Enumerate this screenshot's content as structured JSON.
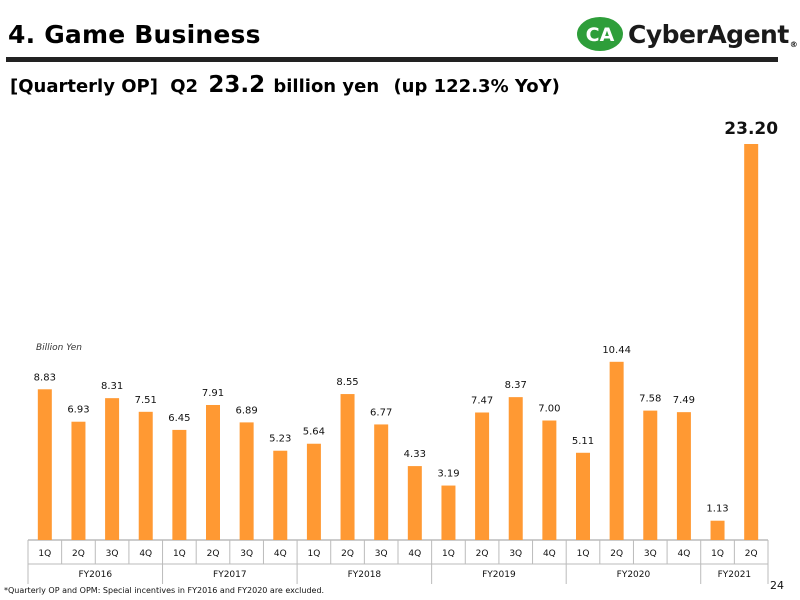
{
  "header": {
    "title": "4. Game Business",
    "logo_text": "CyberAgent",
    "logo_reg": "®",
    "logo_mark": "CA"
  },
  "subtitle": {
    "bracket": "[Quarterly OP]",
    "quarter": "Q2",
    "value": "23.2",
    "unit": "billion yen",
    "yoy": "(up 122.3% YoY)"
  },
  "unit_label": "Billion  Yen",
  "footnote": "*Quarterly OP and OPM: Special incentives in FY2016 and FY2020 are excluded.",
  "page_number": "24",
  "colors": {
    "bar": "#ff9933",
    "accent": "#2e9e3a",
    "rule": "#222222"
  },
  "chart_data": {
    "type": "bar",
    "categories": [
      "1Q",
      "2Q",
      "3Q",
      "4Q",
      "1Q",
      "2Q",
      "3Q",
      "4Q",
      "1Q",
      "2Q",
      "3Q",
      "4Q",
      "1Q",
      "2Q",
      "3Q",
      "4Q",
      "1Q",
      "2Q",
      "3Q",
      "4Q",
      "1Q",
      "2Q"
    ],
    "groups": [
      {
        "label": "FY2016",
        "count": 4
      },
      {
        "label": "FY2017",
        "count": 4
      },
      {
        "label": "FY2018",
        "count": 4
      },
      {
        "label": "FY2019",
        "count": 4
      },
      {
        "label": "FY2020",
        "count": 4
      },
      {
        "label": "FY2021",
        "count": 2
      }
    ],
    "values": [
      8.83,
      6.93,
      8.31,
      7.51,
      6.45,
      7.91,
      6.89,
      5.23,
      5.64,
      8.55,
      6.77,
      4.33,
      3.19,
      7.47,
      8.37,
      7.0,
      5.11,
      10.44,
      7.58,
      7.49,
      1.13,
      23.2
    ],
    "value_labels": [
      "8.83",
      "6.93",
      "8.31",
      "7.51",
      "6.45",
      "7.91",
      "6.89",
      "5.23",
      "5.64",
      "8.55",
      "6.77",
      "4.33",
      "3.19",
      "7.47",
      "8.37",
      "7.00",
      "5.11",
      "10.44",
      "7.58",
      "7.49",
      "1.13",
      "23.20"
    ],
    "highlight_index": 21,
    "ylabel": "Billion  Yen",
    "ylim": [
      0,
      23.2
    ],
    "grid": false,
    "legend": "none"
  }
}
